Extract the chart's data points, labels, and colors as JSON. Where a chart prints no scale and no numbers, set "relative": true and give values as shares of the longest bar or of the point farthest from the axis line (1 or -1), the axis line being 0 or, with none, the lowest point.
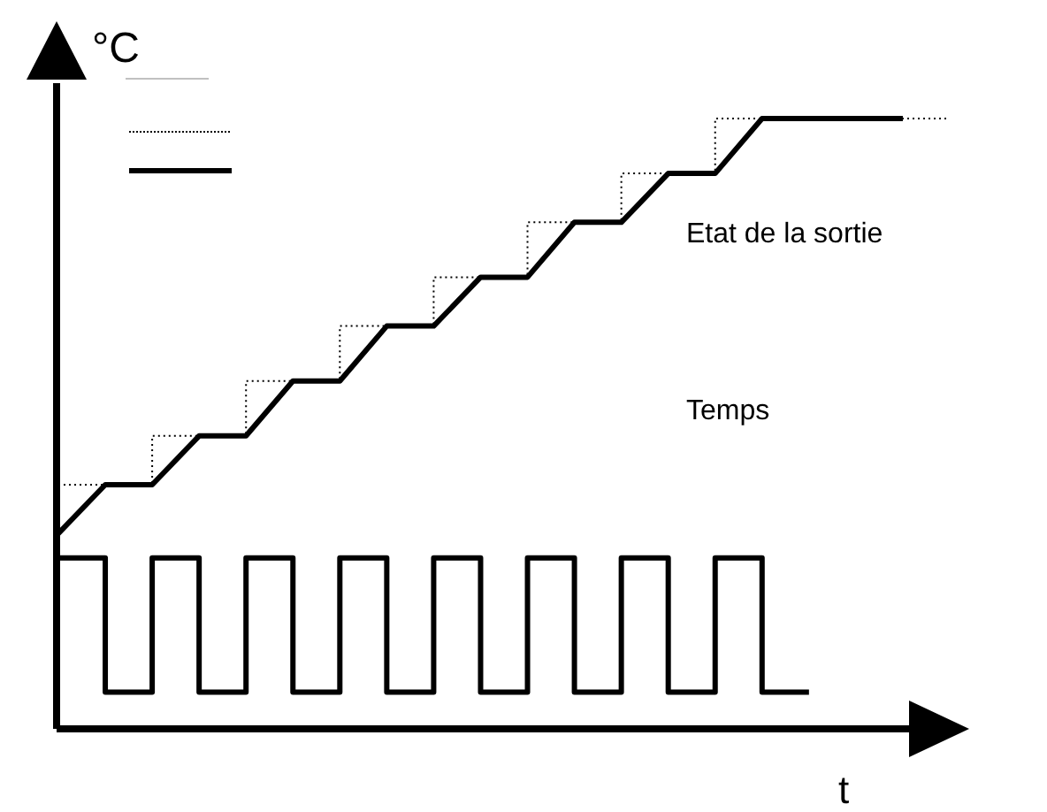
{
  "chart_data": {
    "type": "line",
    "relative": true,
    "xlabel": "t",
    "ylabel": "°C",
    "legend": false,
    "marker": "none",
    "tick_labels": false,
    "categories": [
      null,
      null,
      null,
      null,
      null,
      null,
      null,
      null,
      null,
      null,
      null,
      null,
      null,
      null,
      null,
      null,
      null,
      null,
      null,
      null
    ],
    "annotations": [
      "Etat de la sortie",
      "Temps"
    ],
    "series": [
      {
        "type": "step",
        "color": "#000000",
        "line_style": "dotted",
        "values": [
          0.4,
          0.4,
          0.48,
          0.48,
          0.57,
          0.57,
          0.66,
          0.66,
          0.74,
          0.74,
          0.83,
          0.83,
          0.91,
          0.91,
          1,
          1,
          1,
          1,
          1,
          1
        ]
      },
      {
        "type": "line",
        "color": "#000000",
        "line_style": "solid",
        "values": [
          0.32,
          0.4,
          0.4,
          0.48,
          0.48,
          0.57,
          0.57,
          0.66,
          0.66,
          0.74,
          0.74,
          0.83,
          0.83,
          0.91,
          0.91,
          1,
          1,
          1,
          1,
          null
        ]
      },
      {
        "type": "step",
        "color": "#000000",
        "line_style": "solid",
        "values": [
          0.28,
          0.06,
          0.28,
          0.06,
          0.28,
          0.06,
          0.28,
          0.06,
          0.28,
          0.06,
          0.28,
          0.06,
          0.28,
          0.06,
          0.28,
          0.06,
          0.06,
          null,
          null,
          null
        ]
      }
    ]
  }
}
